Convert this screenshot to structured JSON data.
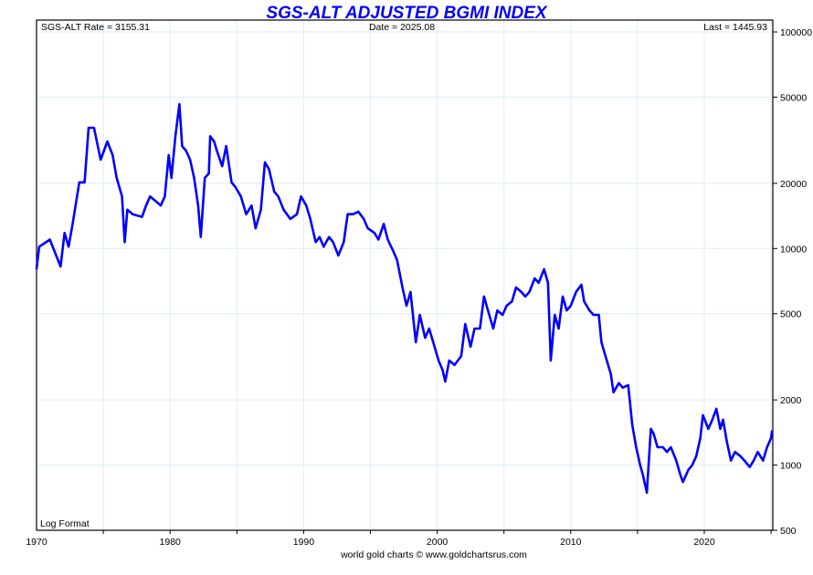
{
  "chart_data": {
    "type": "line",
    "title": "SGS-ALT ADJUSTED BGMI INDEX",
    "header_left": "SGS-ALT Rate = 3155.31",
    "header_center": "Date = 2025.08",
    "header_right": "Last = 1445.93",
    "scale_note": "Log Format",
    "footer": "world gold charts © www.goldchartsrus.com",
    "yscale": "log",
    "ylim": [
      500,
      100000
    ],
    "xlim": [
      1970,
      2025.5
    ],
    "x_ticks": [
      "1970",
      "1980",
      "1990",
      "2000",
      "2010",
      "2020"
    ],
    "y_ticks": [
      "100000",
      "50000",
      "20000",
      "10000",
      "5000",
      "2000",
      "1000",
      "500"
    ],
    "line_color": "#0000ff",
    "title_color": "#0000ff",
    "grid": true,
    "series": [
      {
        "name": "SGS-ALT Adjusted BGMI Index",
        "points": [
          [
            1970.0,
            8020
          ],
          [
            1970.2,
            10200
          ],
          [
            1971.0,
            11000
          ],
          [
            1971.8,
            8260
          ],
          [
            1972.1,
            11800
          ],
          [
            1972.4,
            10200
          ],
          [
            1972.7,
            13000
          ],
          [
            1973.2,
            20200
          ],
          [
            1973.6,
            20200
          ],
          [
            1973.9,
            36100
          ],
          [
            1974.3,
            36100
          ],
          [
            1974.8,
            25700
          ],
          [
            1975.3,
            31200
          ],
          [
            1975.7,
            27000
          ],
          [
            1976.0,
            21200
          ],
          [
            1976.4,
            17400
          ],
          [
            1976.6,
            10700
          ],
          [
            1976.8,
            15100
          ],
          [
            1977.2,
            14400
          ],
          [
            1977.9,
            14000
          ],
          [
            1978.2,
            15800
          ],
          [
            1978.5,
            17400
          ],
          [
            1978.9,
            16600
          ],
          [
            1979.3,
            15800
          ],
          [
            1979.6,
            17400
          ],
          [
            1979.9,
            27000
          ],
          [
            1980.1,
            21200
          ],
          [
            1980.4,
            33000
          ],
          [
            1980.7,
            46400
          ],
          [
            1980.9,
            29700
          ],
          [
            1981.2,
            28300
          ],
          [
            1981.5,
            25700
          ],
          [
            1981.8,
            21200
          ],
          [
            1982.1,
            15800
          ],
          [
            1982.3,
            11300
          ],
          [
            1982.6,
            21200
          ],
          [
            1982.9,
            22200
          ],
          [
            1983.0,
            33000
          ],
          [
            1983.3,
            31200
          ],
          [
            1983.5,
            28300
          ],
          [
            1983.9,
            24000
          ],
          [
            1984.2,
            29700
          ],
          [
            1984.6,
            20200
          ],
          [
            1984.9,
            19200
          ],
          [
            1985.3,
            17400
          ],
          [
            1985.7,
            14400
          ],
          [
            1986.1,
            15800
          ],
          [
            1986.4,
            12400
          ],
          [
            1986.8,
            15100
          ],
          [
            1987.1,
            25000
          ],
          [
            1987.4,
            23300
          ],
          [
            1987.8,
            18300
          ],
          [
            1988.1,
            17400
          ],
          [
            1988.5,
            15100
          ],
          [
            1989.0,
            13700
          ],
          [
            1989.5,
            14400
          ],
          [
            1989.8,
            17400
          ],
          [
            1990.2,
            15800
          ],
          [
            1990.5,
            13700
          ],
          [
            1990.9,
            10700
          ],
          [
            1991.2,
            11300
          ],
          [
            1991.5,
            10200
          ],
          [
            1991.9,
            11300
          ],
          [
            1992.2,
            10700
          ],
          [
            1992.6,
            9290
          ],
          [
            1993.0,
            10700
          ],
          [
            1993.3,
            14400
          ],
          [
            1993.7,
            14400
          ],
          [
            1994.1,
            14800
          ],
          [
            1994.5,
            13700
          ],
          [
            1994.8,
            12400
          ],
          [
            1995.3,
            11800
          ],
          [
            1995.6,
            11000
          ],
          [
            1996.0,
            13000
          ],
          [
            1996.3,
            11000
          ],
          [
            1996.7,
            9750
          ],
          [
            1997.0,
            8840
          ],
          [
            1997.4,
            6610
          ],
          [
            1997.7,
            5440
          ],
          [
            1998.0,
            6300
          ],
          [
            1998.4,
            3690
          ],
          [
            1998.7,
            4940
          ],
          [
            1999.1,
            3870
          ],
          [
            1999.4,
            4270
          ],
          [
            1999.8,
            3520
          ],
          [
            2000.1,
            3040
          ],
          [
            2000.4,
            2760
          ],
          [
            2000.6,
            2430
          ],
          [
            2000.9,
            3040
          ],
          [
            2001.3,
            2900
          ],
          [
            2001.8,
            3190
          ],
          [
            2002.1,
            4480
          ],
          [
            2002.5,
            3520
          ],
          [
            2002.8,
            4270
          ],
          [
            2003.2,
            4270
          ],
          [
            2003.5,
            6000
          ],
          [
            2003.9,
            4940
          ],
          [
            2004.2,
            4270
          ],
          [
            2004.5,
            5180
          ],
          [
            2004.9,
            4940
          ],
          [
            2005.2,
            5440
          ],
          [
            2005.6,
            5710
          ],
          [
            2005.9,
            6610
          ],
          [
            2006.3,
            6300
          ],
          [
            2006.6,
            6000
          ],
          [
            2006.9,
            6300
          ],
          [
            2007.3,
            7280
          ],
          [
            2007.6,
            6940
          ],
          [
            2008.0,
            8020
          ],
          [
            2008.3,
            6940
          ],
          [
            2008.5,
            3040
          ],
          [
            2008.8,
            4940
          ],
          [
            2009.1,
            4270
          ],
          [
            2009.4,
            6000
          ],
          [
            2009.7,
            5180
          ],
          [
            2010.0,
            5440
          ],
          [
            2010.4,
            6300
          ],
          [
            2010.8,
            6800
          ],
          [
            2011.0,
            5710
          ],
          [
            2011.4,
            5180
          ],
          [
            2011.7,
            4940
          ],
          [
            2012.1,
            4940
          ],
          [
            2012.3,
            3690
          ],
          [
            2012.6,
            3190
          ],
          [
            2013.0,
            2630
          ],
          [
            2013.2,
            2170
          ],
          [
            2013.6,
            2390
          ],
          [
            2013.9,
            2280
          ],
          [
            2014.3,
            2340
          ],
          [
            2014.6,
            1540
          ],
          [
            2014.9,
            1210
          ],
          [
            2015.2,
            1000
          ],
          [
            2015.4,
            905
          ],
          [
            2015.7,
            745
          ],
          [
            2016.0,
            1470
          ],
          [
            2016.2,
            1400
          ],
          [
            2016.5,
            1210
          ],
          [
            2016.9,
            1210
          ],
          [
            2017.2,
            1150
          ],
          [
            2017.5,
            1210
          ],
          [
            2017.9,
            1050
          ],
          [
            2018.2,
            905
          ],
          [
            2018.4,
            835
          ],
          [
            2018.8,
            950
          ],
          [
            2019.1,
            1000
          ],
          [
            2019.4,
            1100
          ],
          [
            2019.7,
            1330
          ],
          [
            2019.9,
            1700
          ],
          [
            2020.3,
            1470
          ],
          [
            2020.6,
            1620
          ],
          [
            2020.9,
            1820
          ],
          [
            2021.2,
            1470
          ],
          [
            2021.4,
            1620
          ],
          [
            2021.7,
            1270
          ],
          [
            2022.0,
            1050
          ],
          [
            2022.3,
            1150
          ],
          [
            2022.7,
            1100
          ],
          [
            2023.0,
            1050
          ],
          [
            2023.4,
            980
          ],
          [
            2023.7,
            1050
          ],
          [
            2024.0,
            1150
          ],
          [
            2024.4,
            1050
          ],
          [
            2024.7,
            1210
          ],
          [
            2024.99,
            1330
          ],
          [
            2025.08,
            1445.93
          ]
        ]
      }
    ]
  }
}
